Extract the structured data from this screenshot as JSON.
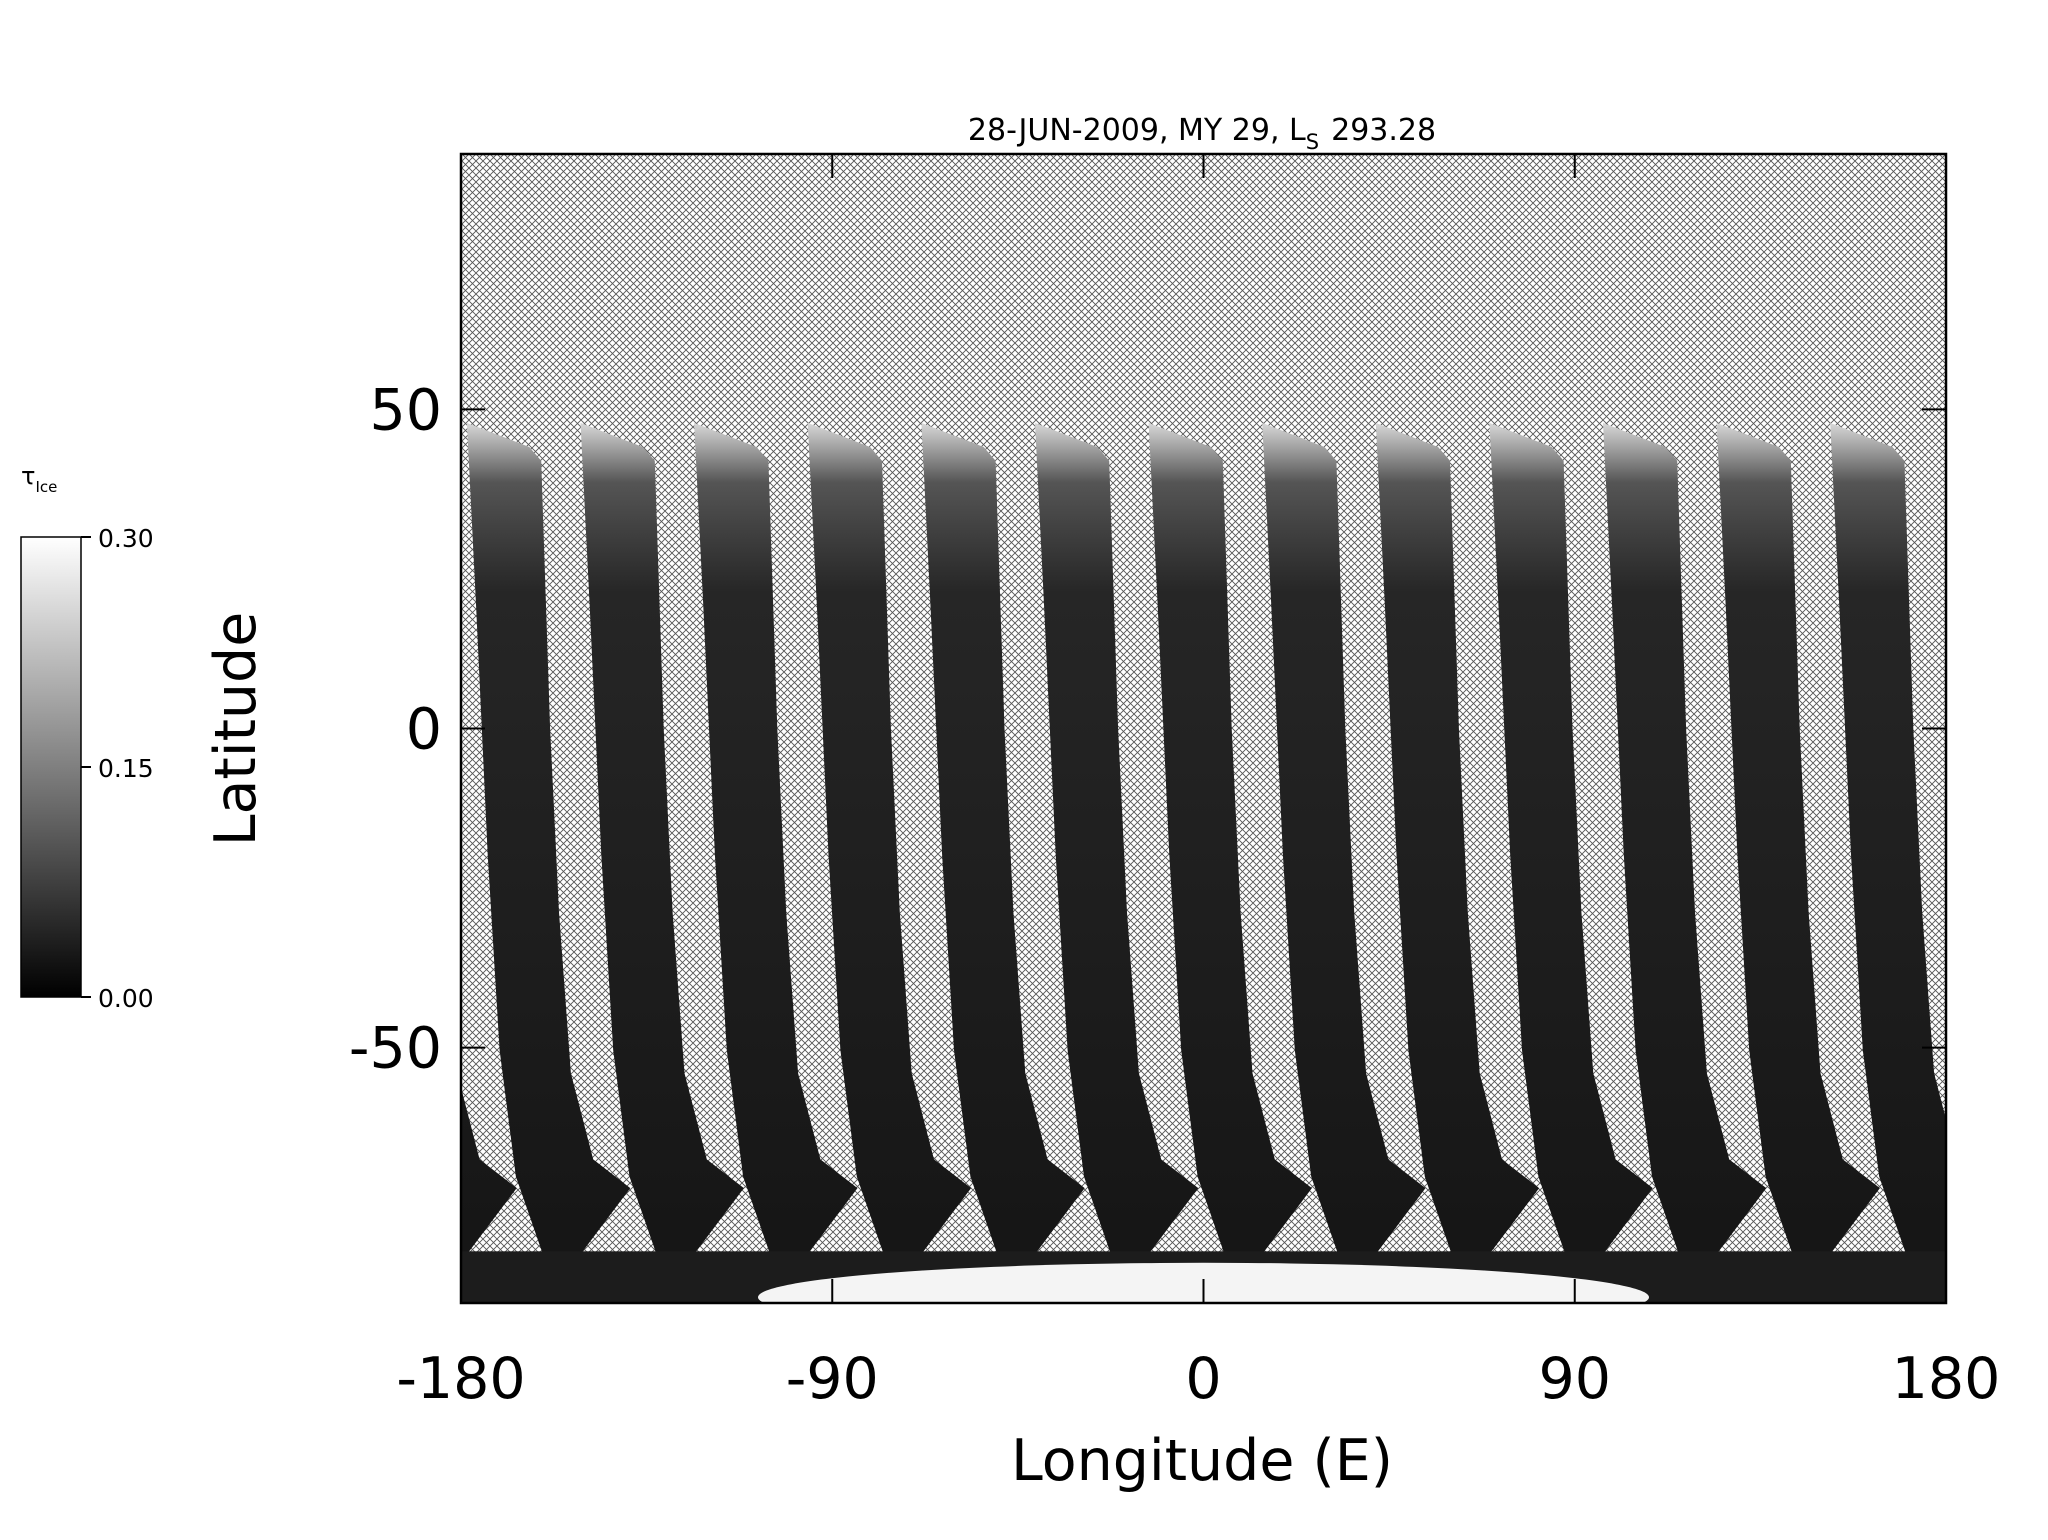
{
  "chart_data": {
    "type": "map",
    "title": {
      "text": "28-JUN-2009, MY 29,  L",
      "subscript": "S",
      "suffix": "293.28"
    },
    "x_label": "Longitude (E)",
    "y_label": "Latitude",
    "xlim": [
      -180,
      180
    ],
    "ylim": [
      -90,
      90
    ],
    "xticks": [
      -180,
      -90,
      0,
      90,
      180
    ],
    "yticks": [
      -50,
      0,
      50
    ],
    "colorbar": {
      "label": "τ",
      "label_subscript": "Ice",
      "lim": [
        0,
        0.3
      ],
      "ticks": [
        {
          "value": 0,
          "label": "0.00"
        },
        {
          "value": 0.15,
          "label": "0.15"
        },
        {
          "value": 0.3,
          "label": "0.30"
        }
      ],
      "colors": [
        "#000000",
        "#ffffff"
      ]
    }
  }
}
